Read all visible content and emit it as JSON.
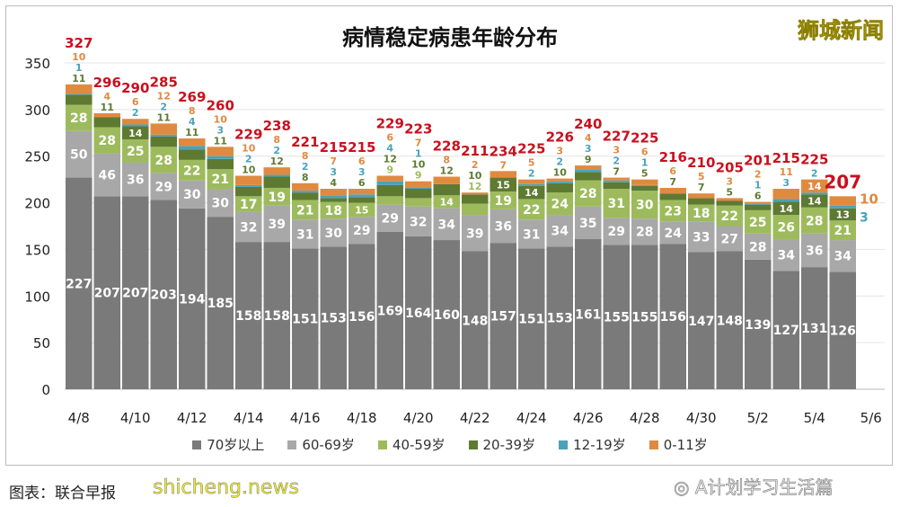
{
  "chart_data": {
    "type": "bar",
    "stacked": true,
    "title": "病情稳定病患年龄分布",
    "ylim": [
      0,
      350
    ],
    "yticks": [
      0,
      50,
      100,
      150,
      200,
      250,
      300,
      350
    ],
    "categories": [
      "4/8",
      "4/9",
      "4/10",
      "4/11",
      "4/12",
      "4/13",
      "4/14",
      "4/15",
      "4/16",
      "4/17",
      "4/18",
      "4/19",
      "4/20",
      "4/21",
      "4/22",
      "4/23",
      "4/24",
      "4/25",
      "4/26",
      "4/27",
      "4/28",
      "4/29",
      "4/30",
      "5/1",
      "5/2",
      "5/3",
      "5/4",
      "5/5"
    ],
    "xtick_labels": [
      "4/8",
      "4/10",
      "4/12",
      "4/14",
      "4/16",
      "4/18",
      "4/20",
      "4/22",
      "4/24",
      "4/26",
      "4/28",
      "4/30",
      "5/2",
      "5/4",
      "5/6"
    ],
    "series": [
      {
        "name": "70岁以上",
        "color": "#7a7a7a",
        "values": [
          227,
          207,
          207,
          203,
          194,
          185,
          158,
          158,
          151,
          153,
          156,
          169,
          164,
          160,
          148,
          157,
          151,
          153,
          161,
          155,
          155,
          156,
          147,
          148,
          139,
          127,
          131,
          126
        ]
      },
      {
        "name": "60-69岁",
        "color": "#a8a8a8",
        "values": [
          50,
          46,
          36,
          29,
          30,
          30,
          32,
          39,
          31,
          30,
          29,
          29,
          32,
          34,
          39,
          36,
          31,
          34,
          35,
          29,
          28,
          24,
          33,
          27,
          28,
          34,
          36,
          34
        ]
      },
      {
        "name": "40-59岁",
        "color": "#9dbb5c",
        "values": [
          28,
          28,
          25,
          28,
          22,
          21,
          17,
          19,
          21,
          18,
          15,
          9,
          9,
          14,
          12,
          19,
          22,
          24,
          28,
          31,
          30,
          23,
          18,
          22,
          25,
          26,
          28,
          21
        ]
      },
      {
        "name": "20-39岁",
        "color": "#5e7a32",
        "values": [
          11,
          11,
          14,
          11,
          11,
          11,
          10,
          12,
          8,
          4,
          6,
          12,
          10,
          12,
          10,
          15,
          14,
          10,
          9,
          7,
          5,
          7,
          7,
          5,
          6,
          14,
          14,
          13
        ]
      },
      {
        "name": "12-19岁",
        "color": "#4aa3b8",
        "values": [
          1,
          0,
          2,
          2,
          4,
          3,
          2,
          2,
          2,
          3,
          3,
          4,
          1,
          0,
          0,
          0,
          2,
          2,
          3,
          2,
          1,
          0,
          0,
          0,
          1,
          3,
          2,
          3
        ]
      },
      {
        "name": "0-11岁",
        "color": "#e08a40",
        "values": [
          10,
          4,
          6,
          12,
          8,
          10,
          10,
          8,
          8,
          7,
          6,
          6,
          7,
          8,
          2,
          7,
          5,
          3,
          4,
          3,
          6,
          6,
          5,
          3,
          2,
          11,
          14,
          10
        ]
      }
    ],
    "totals": [
      327,
      296,
      290,
      285,
      269,
      260,
      229,
      238,
      221,
      215,
      215,
      229,
      223,
      228,
      211,
      234,
      225,
      226,
      240,
      227,
      225,
      216,
      210,
      205,
      201,
      215,
      225,
      207
    ],
    "legend_position": "bottom"
  },
  "watermarks": {
    "top": "狮城新闻",
    "bottom": "shicheng.news",
    "wechat": "A计划学习生活篇"
  },
  "credit": "图表：联合早报"
}
